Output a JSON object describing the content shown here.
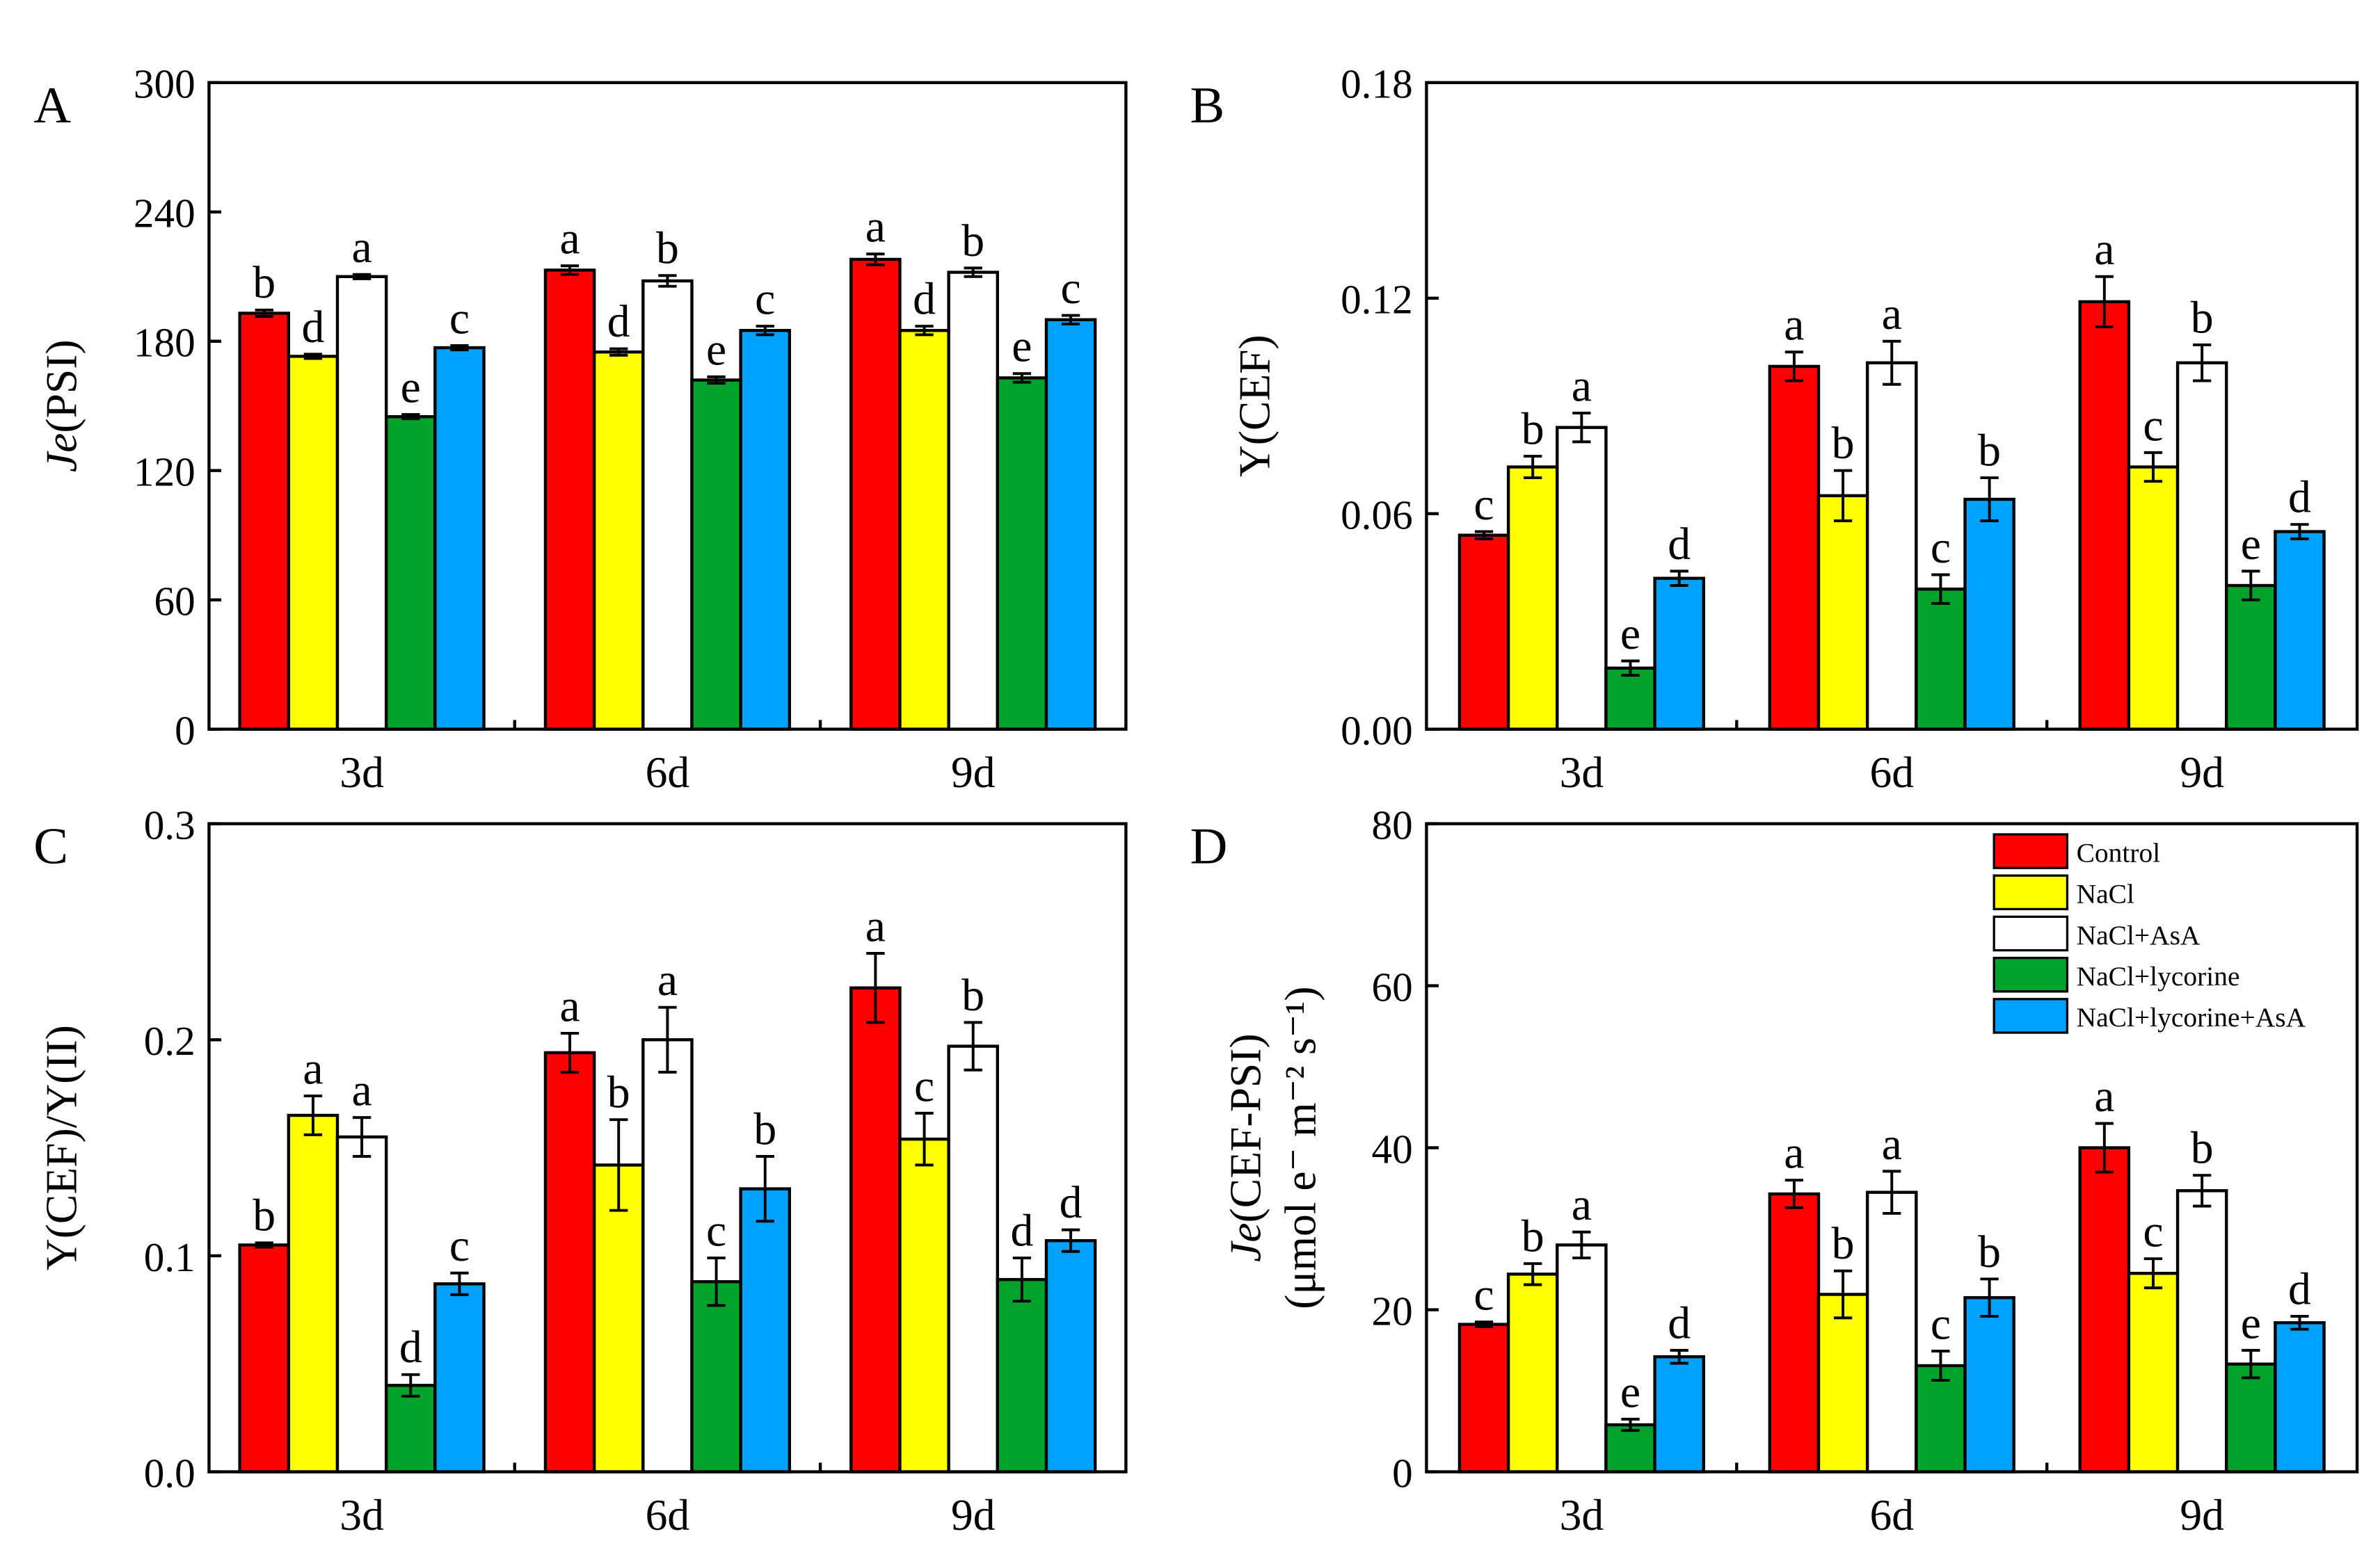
{
  "chart_data": [
    {
      "type": "bar",
      "panel": "A",
      "ylabel_italic": "Je",
      "ylabel_rest": "(PSI)",
      "ylabel_line2": "",
      "ylim": [
        0,
        300
      ],
      "yticks": [
        "0",
        "60",
        "120",
        "180",
        "240",
        "300"
      ],
      "categories": [
        "3d",
        "6d",
        "9d"
      ],
      "series": [
        {
          "name": "Control",
          "values": [
            193,
            213,
            218
          ],
          "errors": [
            1.5,
            2,
            2.5
          ],
          "letters": [
            "b",
            "a",
            "a"
          ]
        },
        {
          "name": "NaCl",
          "values": [
            173,
            175,
            185
          ],
          "errors": [
            1,
            1.5,
            2
          ],
          "letters": [
            "d",
            "d",
            "d"
          ]
        },
        {
          "name": "NaCl+AsA",
          "values": [
            210,
            208,
            212
          ],
          "errors": [
            1,
            2.5,
            2
          ],
          "letters": [
            "a",
            "b",
            "b"
          ]
        },
        {
          "name": "NaCl+lycorine",
          "values": [
            145,
            162,
            163
          ],
          "errors": [
            1,
            1.5,
            2
          ],
          "letters": [
            "e",
            "e",
            "e"
          ]
        },
        {
          "name": "NaCl+lycorine+AsA",
          "values": [
            177,
            185,
            190
          ],
          "errors": [
            1,
            2,
            2
          ],
          "letters": [
            "c",
            "c",
            "c"
          ]
        }
      ]
    },
    {
      "type": "bar",
      "panel": "B",
      "ylabel_italic": "",
      "ylabel_rest": "Y(CEF)",
      "ylabel_line2": "",
      "ylim": [
        0,
        0.18
      ],
      "yticks": [
        "0.00",
        "0.06",
        "0.12",
        "0.18"
      ],
      "categories": [
        "3d",
        "6d",
        "9d"
      ],
      "series": [
        {
          "name": "Control",
          "values": [
            0.054,
            0.101,
            0.119
          ],
          "errors": [
            0.001,
            0.004,
            0.007
          ],
          "letters": [
            "c",
            "a",
            "a"
          ]
        },
        {
          "name": "NaCl",
          "values": [
            0.073,
            0.065,
            0.073
          ],
          "errors": [
            0.003,
            0.007,
            0.004
          ],
          "letters": [
            "b",
            "b",
            "c"
          ]
        },
        {
          "name": "NaCl+AsA",
          "values": [
            0.084,
            0.102,
            0.102
          ],
          "errors": [
            0.004,
            0.006,
            0.005
          ],
          "letters": [
            "a",
            "a",
            "b"
          ]
        },
        {
          "name": "NaCl+lycorine",
          "values": [
            0.017,
            0.039,
            0.04
          ],
          "errors": [
            0.002,
            0.004,
            0.004
          ],
          "letters": [
            "e",
            "c",
            "e"
          ]
        },
        {
          "name": "NaCl+lycorine+AsA",
          "values": [
            0.042,
            0.064,
            0.055
          ],
          "errors": [
            0.002,
            0.006,
            0.002
          ],
          "letters": [
            "d",
            "b",
            "d"
          ]
        }
      ]
    },
    {
      "type": "bar",
      "panel": "C",
      "ylabel_italic": "",
      "ylabel_rest": "Y(CEF)/Y(II)",
      "ylabel_line2": "",
      "ylim": [
        0,
        0.3
      ],
      "yticks": [
        "0.0",
        "0.1",
        "0.2",
        "0.3"
      ],
      "categories": [
        "3d",
        "6d",
        "9d"
      ],
      "series": [
        {
          "name": "Control",
          "values": [
            0.105,
            0.194,
            0.224
          ],
          "errors": [
            0.001,
            0.009,
            0.016
          ],
          "letters": [
            "b",
            "a",
            "a"
          ]
        },
        {
          "name": "NaCl",
          "values": [
            0.165,
            0.142,
            0.154
          ],
          "errors": [
            0.009,
            0.021,
            0.012
          ],
          "letters": [
            "a",
            "b",
            "c"
          ]
        },
        {
          "name": "NaCl+AsA",
          "values": [
            0.155,
            0.2,
            0.197
          ],
          "errors": [
            0.009,
            0.015,
            0.011
          ],
          "letters": [
            "a",
            "a",
            "b"
          ]
        },
        {
          "name": "NaCl+lycorine",
          "values": [
            0.04,
            0.088,
            0.089
          ],
          "errors": [
            0.005,
            0.011,
            0.01
          ],
          "letters": [
            "d",
            "c",
            "d"
          ]
        },
        {
          "name": "NaCl+lycorine+AsA",
          "values": [
            0.087,
            0.131,
            0.107
          ],
          "errors": [
            0.005,
            0.015,
            0.005
          ],
          "letters": [
            "c",
            "b",
            "d"
          ]
        }
      ]
    },
    {
      "type": "bar",
      "panel": "D",
      "ylabel_italic": "Je",
      "ylabel_rest": "(CEF-PSI)",
      "ylabel_line2": "(μmol e⁻ m⁻² s⁻¹)",
      "ylim": [
        0,
        80
      ],
      "yticks": [
        "0",
        "20",
        "40",
        "60",
        "80"
      ],
      "categories": [
        "3d",
        "6d",
        "9d"
      ],
      "legend": "top-right",
      "series": [
        {
          "name": "Control",
          "values": [
            18.2,
            34.3,
            40.0
          ],
          "errors": [
            0.3,
            1.7,
            3.0
          ],
          "letters": [
            "c",
            "a",
            "a"
          ]
        },
        {
          "name": "NaCl",
          "values": [
            24.4,
            21.9,
            24.5
          ],
          "errors": [
            1.3,
            2.9,
            1.8
          ],
          "letters": [
            "b",
            "b",
            "c"
          ]
        },
        {
          "name": "NaCl+AsA",
          "values": [
            28.0,
            34.5,
            34.7
          ],
          "errors": [
            1.6,
            2.6,
            1.9
          ],
          "letters": [
            "a",
            "a",
            "b"
          ]
        },
        {
          "name": "NaCl+lycorine",
          "values": [
            5.8,
            13.1,
            13.3
          ],
          "errors": [
            0.7,
            1.8,
            1.7
          ],
          "letters": [
            "e",
            "c",
            "e"
          ]
        },
        {
          "name": "NaCl+lycorine+AsA",
          "values": [
            14.2,
            21.5,
            18.4
          ],
          "errors": [
            0.8,
            2.3,
            0.8
          ],
          "letters": [
            "d",
            "b",
            "d"
          ]
        }
      ]
    }
  ],
  "colors": {
    "Control": "#ff0000",
    "NaCl": "#ffff00",
    "NaCl+AsA": "#ffffff",
    "NaCl+lycorine": "#00a32a",
    "NaCl+lycorine+AsA": "#00a2ff"
  }
}
